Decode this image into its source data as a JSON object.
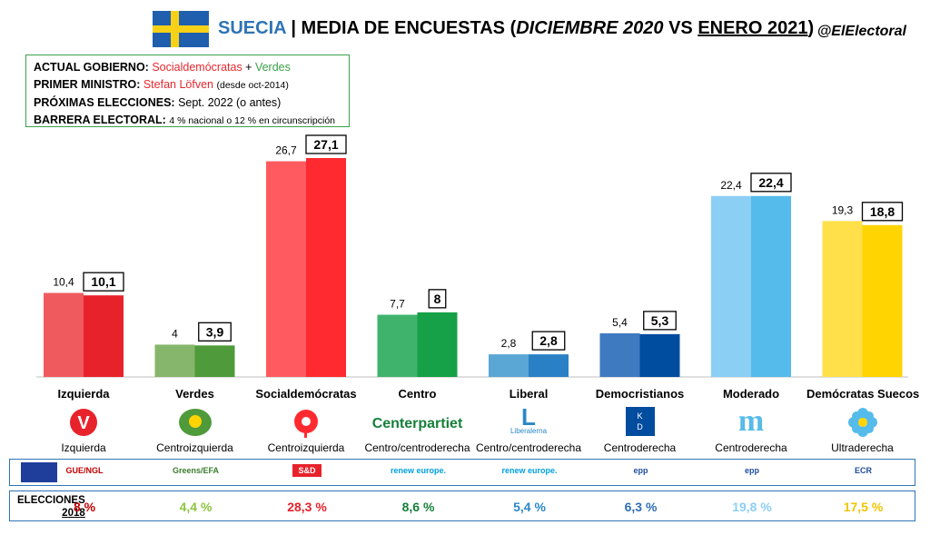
{
  "header": {
    "country": "SUECIA",
    "separator": " | ",
    "title_main": "MEDIA DE ENCUESTAS (",
    "title_prev": "DICIEMBRE 2020",
    "title_vs": " VS ",
    "title_curr": "ENERO 2021",
    "title_close": ")",
    "handle": "@ElElectoral"
  },
  "info": {
    "gov_label": "ACTUAL GOBIERNO:",
    "gov_party1": "Socialdemócratas",
    "gov_plus": " + ",
    "gov_party2": "Verdes",
    "pm_label": "PRIMER MINISTRO:",
    "pm_name": "Stefan Löfven",
    "pm_since": "(desde oct-2014)",
    "next_label": "PRÓXIMAS ELECCIONES:",
    "next_value": "Sept. 2022 (o antes)",
    "barrier_label": "BARRERA ELECTORAL:",
    "barrier_value": "4 % nacional o 12 % en circunscripción"
  },
  "chart_data": {
    "type": "bar",
    "categories": [
      "Izquierda",
      "Verdes",
      "Socialdemócratas",
      "Centro",
      "Liberal",
      "Democristianos",
      "Moderado",
      "Demócratas Suecos"
    ],
    "series": [
      {
        "name": "Diciembre 2020",
        "values": [
          10.4,
          4,
          26.7,
          7.7,
          2.8,
          5.4,
          22.4,
          19.3
        ],
        "labels": [
          "10,4",
          "4",
          "26,7",
          "7,7",
          "2,8",
          "5,4",
          "22,4",
          "19,3"
        ]
      },
      {
        "name": "Enero 2021",
        "values": [
          10.1,
          3.9,
          27.1,
          8,
          2.8,
          5.3,
          22.4,
          18.8
        ],
        "labels": [
          "10,1",
          "3,9",
          "27,1",
          "8",
          "2,8",
          "5,3",
          "22,4",
          "18,8"
        ]
      }
    ],
    "ylim": [
      0,
      27.1
    ],
    "grid": false,
    "colors_prev": [
      "#ef5a5e",
      "#86b66b",
      "#ff5a60",
      "#3fb36b",
      "#5aa6d4",
      "#3e7ac0",
      "#8ccff5",
      "#ffe04a"
    ],
    "colors_curr": [
      "#e8222b",
      "#4f9a3a",
      "#ff2a30",
      "#16a047",
      "#2980c4",
      "#004c9f",
      "#55bbea",
      "#ffd400"
    ]
  },
  "parties": [
    {
      "ideology": "Izquierda",
      "logo_text": "V",
      "logo_icon": "left-party-v-icon",
      "eu_group": "GUE/NGL",
      "eu_color": "#c00000",
      "result_2018": "8 %",
      "result_color": "#c00000"
    },
    {
      "ideology": "Centroizquierda",
      "logo_text": "",
      "logo_icon": "green-party-sunflower-icon",
      "eu_group": "Greens/EFA",
      "eu_color": "#3a7d2e",
      "result_2018": "4,4 %",
      "result_color": "#8cc63f"
    },
    {
      "ideology": "Centroizquierda",
      "logo_text": "",
      "logo_icon": "social-democrats-rose-icon",
      "eu_group": "S&D",
      "eu_color": "#ffffff",
      "result_2018": "28,3 %",
      "result_color": "#e8222b"
    },
    {
      "ideology": "Centro/centroderecha",
      "logo_text": "Centerpartiet",
      "logo_icon": "centre-party-clover-icon",
      "eu_group": "renew europe.",
      "eu_color": "#00a0e0",
      "result_2018": "8,6 %",
      "result_color": "#16803a"
    },
    {
      "ideology": "Centro/centroderecha",
      "logo_text": "Liberalerna",
      "logo_icon": "liberals-l-icon",
      "eu_group": "renew europe.",
      "eu_color": "#00a0e0",
      "result_2018": "5,4 %",
      "result_color": "#2a87c8"
    },
    {
      "ideology": "Centroderecha",
      "logo_text": "KD",
      "logo_icon": "christian-democrats-kd-icon",
      "eu_group": "epp",
      "eu_color": "#1e4c9e",
      "result_2018": "6,3 %",
      "result_color": "#2e6fb5"
    },
    {
      "ideology": "Centroderecha",
      "logo_text": "m",
      "logo_icon": "moderates-m-icon",
      "eu_group": "epp",
      "eu_color": "#1e4c9e",
      "result_2018": "19,8 %",
      "result_color": "#8ccff5"
    },
    {
      "ideology": "Ultraderecha",
      "logo_text": "",
      "logo_icon": "sweden-democrats-flower-icon",
      "eu_group": "ECR",
      "eu_color": "#1e4c9e",
      "result_2018": "17,5 %",
      "result_color": "#f2c500"
    }
  ],
  "elections": {
    "label_line1": "ELECCIONES",
    "label_line2": "2018"
  }
}
